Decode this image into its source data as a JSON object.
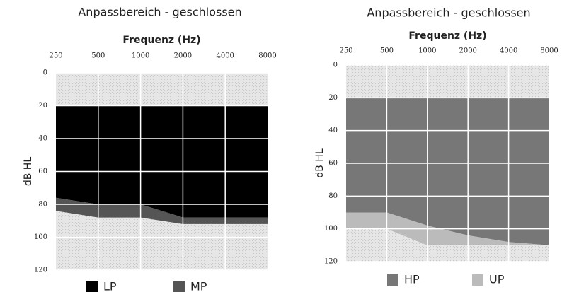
{
  "chart_data": [
    {
      "type": "band",
      "title": "Anpassbereich - geschlossen",
      "xlabel": "Frequenz (Hz)",
      "ylabel": "dB HL",
      "categories": [
        "250",
        "500",
        "1000",
        "2000",
        "4000",
        "8000"
      ],
      "ylim": [
        0,
        120
      ],
      "yticks": [
        0,
        20,
        40,
        60,
        80,
        100,
        120
      ],
      "inverted": true,
      "grid": true,
      "series": [
        {
          "name": "LP",
          "color": "#000000",
          "top": [
            20,
            20,
            20,
            20,
            20,
            20
          ],
          "values": [
            76,
            80,
            80,
            88,
            88,
            88
          ]
        },
        {
          "name": "MP",
          "color": "#555555",
          "top": [
            76,
            80,
            80,
            88,
            88,
            88
          ],
          "values": [
            84,
            88,
            88,
            92,
            92,
            92
          ]
        }
      ]
    },
    {
      "type": "band",
      "title": "Anpassbereich - geschlossen",
      "xlabel": "Frequenz (Hz)",
      "ylabel": "dB HL",
      "categories": [
        "250",
        "500",
        "1000",
        "2000",
        "4000",
        "8000"
      ],
      "ylim": [
        0,
        120
      ],
      "yticks": [
        0,
        20,
        40,
        60,
        80,
        100,
        120
      ],
      "inverted": true,
      "grid": true,
      "series": [
        {
          "name": "HP",
          "color": "#777777",
          "top": [
            20,
            20,
            20,
            20,
            20,
            20
          ],
          "values": [
            90,
            90,
            98,
            104,
            108,
            110
          ]
        },
        {
          "name": "UP",
          "color": "#bbbbbb",
          "top": [
            90,
            90,
            98,
            104,
            108,
            110
          ],
          "values": [
            100,
            100,
            110,
            110,
            110,
            110
          ]
        }
      ]
    }
  ]
}
